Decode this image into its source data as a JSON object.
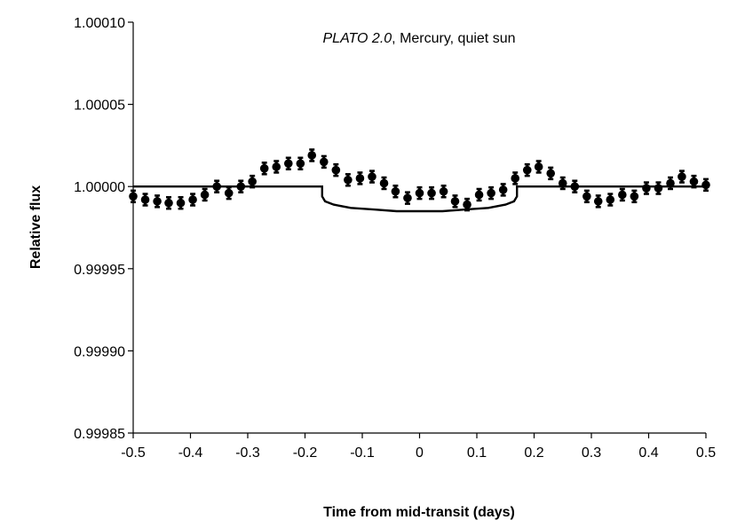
{
  "chart_data": {
    "type": "scatter",
    "title": {
      "italic": "PLATO 2.0",
      "rest": ", Mercury, quiet sun"
    },
    "xlabel": "Time from mid-transit (days)",
    "ylabel": "Relative flux",
    "xlim": [
      -0.5,
      0.5
    ],
    "ylim": [
      0.99985,
      1.0001
    ],
    "x_ticks": [
      -0.5,
      -0.4,
      -0.3,
      -0.2,
      -0.1,
      0,
      0.1,
      0.2,
      0.3,
      0.4,
      0.5
    ],
    "x_tick_labels": [
      "-0.5",
      "-0.4",
      "-0.3",
      "-0.2",
      "-0.1",
      "0",
      "0.1",
      "0.2",
      "0.3",
      "0.4",
      "0.5"
    ],
    "y_ticks": [
      0.99985,
      0.9999,
      0.99995,
      1.0,
      1.00005,
      1.0001
    ],
    "y_tick_labels": [
      "0.99985",
      "0.99990",
      "0.99995",
      "1.00000",
      "1.00005",
      "1.00010"
    ],
    "grid": false,
    "legend": null,
    "series": [
      {
        "name": "data",
        "style": "markers-with-errorbars",
        "error": 3.5e-06,
        "x": [
          -0.5,
          -0.479,
          -0.458,
          -0.438,
          -0.417,
          -0.396,
          -0.375,
          -0.354,
          -0.333,
          -0.312,
          -0.292,
          -0.271,
          -0.25,
          -0.229,
          -0.208,
          -0.188,
          -0.167,
          -0.146,
          -0.125,
          -0.104,
          -0.083,
          -0.062,
          -0.042,
          -0.021,
          0.0,
          0.021,
          0.042,
          0.062,
          0.083,
          0.104,
          0.125,
          0.146,
          0.167,
          0.188,
          0.208,
          0.229,
          0.25,
          0.271,
          0.292,
          0.312,
          0.333,
          0.354,
          0.375,
          0.396,
          0.417,
          0.438,
          0.458,
          0.479,
          0.5
        ],
        "y": [
          0.999994,
          0.999992,
          0.999991,
          0.99999,
          0.99999,
          0.999992,
          0.999995,
          1.0,
          0.999996,
          1.0,
          1.000003,
          1.000011,
          1.000012,
          1.000014,
          1.000014,
          1.000019,
          1.000015,
          1.00001,
          1.000004,
          1.000005,
          1.000006,
          1.000002,
          0.999997,
          0.999993,
          0.999996,
          0.999996,
          0.999997,
          0.999991,
          0.999989,
          0.999995,
          0.999996,
          0.999998,
          1.000005,
          1.00001,
          1.000012,
          1.000008,
          1.000002,
          1.0,
          0.999994,
          0.999991,
          0.999992,
          0.999995,
          0.999994,
          0.999999,
          0.999999,
          1.000002,
          1.000006,
          1.000003,
          1.000001
        ]
      },
      {
        "name": "transit model",
        "style": "line",
        "x": [
          -0.5,
          -0.17,
          -0.17,
          -0.165,
          -0.15,
          -0.12,
          -0.08,
          -0.04,
          0.0,
          0.04,
          0.08,
          0.12,
          0.15,
          0.165,
          0.17,
          0.17,
          0.5
        ],
        "y": [
          1.0,
          1.0,
          0.999994,
          0.999991,
          0.999989,
          0.999987,
          0.999986,
          0.999985,
          0.999985,
          0.999985,
          0.999986,
          0.999987,
          0.999989,
          0.999991,
          0.999994,
          1.0,
          1.0
        ]
      }
    ]
  }
}
